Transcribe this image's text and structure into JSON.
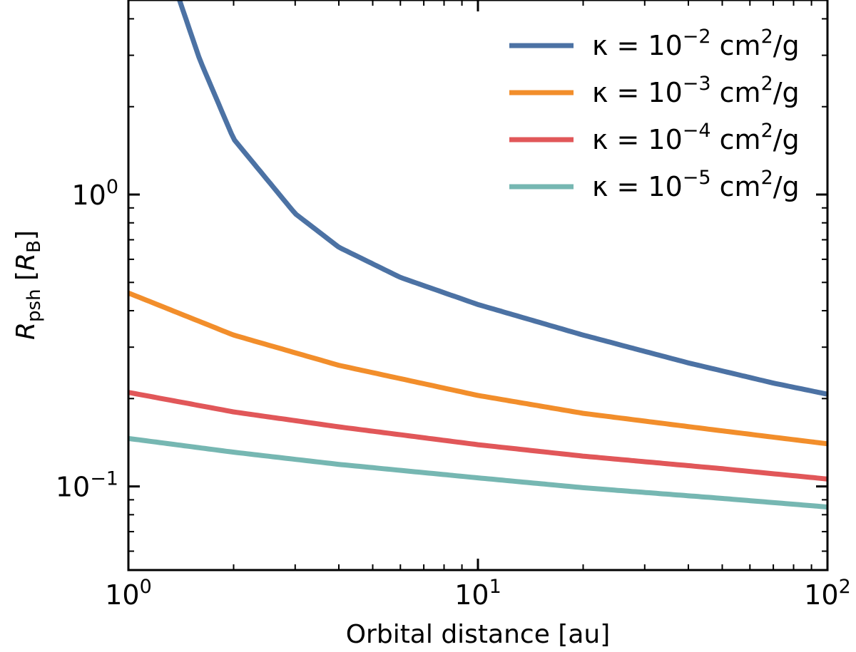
{
  "chart_data": {
    "type": "line",
    "title": "",
    "xlabel": "Orbital distance [au]",
    "ylabel": "R_psh [R_B]",
    "ylabel_parts": {
      "base": "R",
      "sub": "psh",
      "unit_base": "R",
      "unit_sub": "B"
    },
    "xscale": "log",
    "yscale": "log",
    "xlim": [
      1,
      100
    ],
    "ylim": [
      0.0517,
      4.64
    ],
    "x_ticks": [
      {
        "value": 1,
        "base": "10",
        "exp": "0"
      },
      {
        "value": 10,
        "base": "10",
        "exp": "1"
      },
      {
        "value": 100,
        "base": "10",
        "exp": "2"
      }
    ],
    "y_ticks": [
      {
        "value": 0.1,
        "base": "10",
        "exp": "−1"
      },
      {
        "value": 1,
        "base": "10",
        "exp": "0"
      }
    ],
    "legend_position": "top-right",
    "grid": false,
    "series": [
      {
        "name": "κ = 10^-2 cm^2/g",
        "label": {
          "prefix": "κ = 10",
          "exp": "−2",
          "unit": " cm",
          "unit_exp": "2",
          "suffix": "/g"
        },
        "color": "#4c72a4",
        "x": [
          1.4,
          1.6,
          2,
          3,
          4,
          6,
          10,
          20,
          40,
          70,
          100
        ],
        "y": [
          4.64,
          2.9,
          1.55,
          0.86,
          0.66,
          0.52,
          0.42,
          0.33,
          0.265,
          0.226,
          0.207
        ]
      },
      {
        "name": "κ = 10^-3 cm^2/g",
        "label": {
          "prefix": "κ = 10",
          "exp": "−3",
          "unit": " cm",
          "unit_exp": "2",
          "suffix": "/g"
        },
        "color": "#f28e2b",
        "x": [
          1,
          2,
          4,
          10,
          20,
          50,
          100
        ],
        "y": [
          0.46,
          0.33,
          0.26,
          0.205,
          0.178,
          0.155,
          0.14
        ]
      },
      {
        "name": "κ = 10^-4 cm^2/g",
        "label": {
          "prefix": "κ = 10",
          "exp": "−4",
          "unit": " cm",
          "unit_exp": "2",
          "suffix": "/g"
        },
        "color": "#e15759",
        "x": [
          1,
          2,
          4,
          10,
          20,
          50,
          100
        ],
        "y": [
          0.21,
          0.18,
          0.16,
          0.139,
          0.127,
          0.115,
          0.106
        ]
      },
      {
        "name": "κ = 10^-5 cm^2/g",
        "label": {
          "prefix": "κ = 10",
          "exp": "−5",
          "unit": " cm",
          "unit_exp": "2",
          "suffix": "/g"
        },
        "color": "#76b7b2",
        "x": [
          1,
          2,
          4,
          10,
          20,
          50,
          100
        ],
        "y": [
          0.146,
          0.131,
          0.119,
          0.107,
          0.099,
          0.091,
          0.085
        ]
      }
    ]
  }
}
